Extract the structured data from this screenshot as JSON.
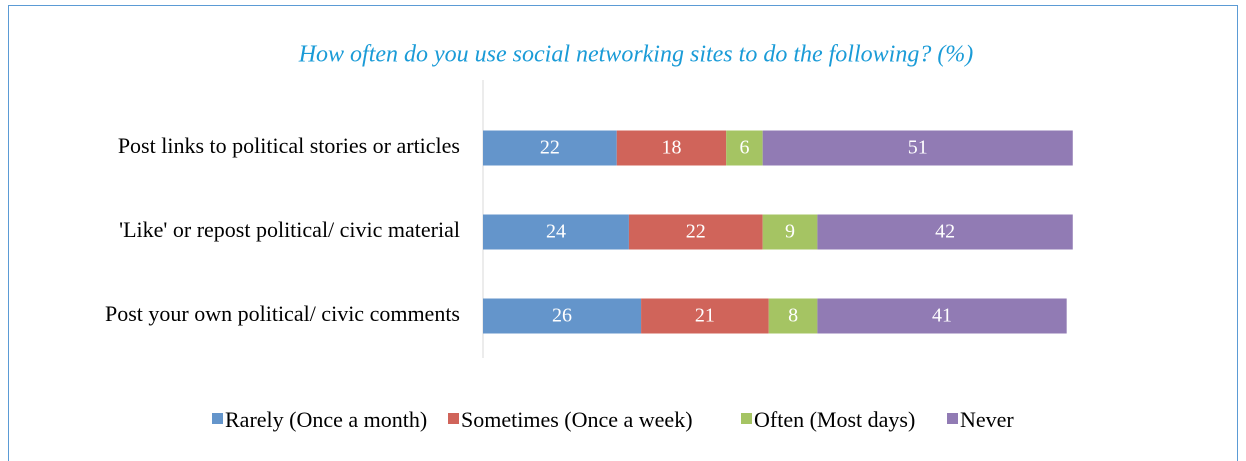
{
  "chart_data": {
    "type": "stacked-bar-horizontal",
    "title": "How often do you use social networking sites to do the following? (%)",
    "categories": [
      "Post links to political stories or articles",
      "'Like' or repost political/ civic material",
      "Post your own political/ civic comments"
    ],
    "series": [
      {
        "name": "Rarely (Once a month)",
        "color": "#6495cb",
        "values": [
          22,
          24,
          26
        ]
      },
      {
        "name": "Sometimes (Once a week)",
        "color": "#d0645a",
        "values": [
          18,
          22,
          21
        ]
      },
      {
        "name": "Often (Most days)",
        "color": "#a5c463",
        "values": [
          6,
          9,
          8
        ]
      },
      {
        "name": "Never",
        "color": "#917bb4",
        "values": [
          51,
          42,
          41
        ]
      }
    ],
    "xlim": [
      0,
      100
    ],
    "legend": "bottom"
  }
}
